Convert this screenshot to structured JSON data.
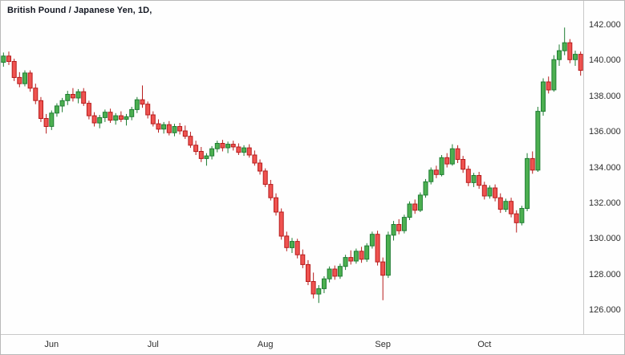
{
  "window": {
    "title": "British Pound / Japanese Yen, 1D,"
  },
  "colors": {
    "up": "#4caf50",
    "up_border": "#1e7d32",
    "down": "#ef5350",
    "down_border": "#b71c1c",
    "background": "#fefefe",
    "axis_line": "#c9c9c9",
    "text": "#2e2e2e"
  },
  "chart_data": {
    "type": "candlestick",
    "title": "British Pound / Japanese Yen, 1D,",
    "symbol": "British Pound / Japanese Yen",
    "interval": "1D",
    "legend_position": "top-left",
    "grid": false,
    "ylim": [
      124.65,
      143.35
    ],
    "y_ticks": [
      {
        "value": 142,
        "label": "142.000"
      },
      {
        "value": 140,
        "label": "140.000"
      },
      {
        "value": 138,
        "label": "138.000"
      },
      {
        "value": 136,
        "label": "136.000"
      },
      {
        "value": 134,
        "label": "134.000"
      },
      {
        "value": 132,
        "label": "132.000"
      },
      {
        "value": 130,
        "label": "130.000"
      },
      {
        "value": 128,
        "label": "128.000"
      },
      {
        "value": 126,
        "label": "126.000"
      }
    ],
    "x_ticks": [
      {
        "index": 9,
        "label": "Jun"
      },
      {
        "index": 28,
        "label": "Jul"
      },
      {
        "index": 49,
        "label": "Aug"
      },
      {
        "index": 71,
        "label": "Sep"
      },
      {
        "index": 90,
        "label": "Oct"
      }
    ],
    "candles": [
      [
        139.9,
        140.45,
        139.65,
        140.25
      ],
      [
        140.25,
        140.5,
        139.75,
        139.95
      ],
      [
        139.95,
        140.1,
        138.85,
        139.05
      ],
      [
        139.05,
        139.35,
        138.5,
        138.7
      ],
      [
        138.7,
        139.45,
        138.55,
        139.3
      ],
      [
        139.3,
        139.45,
        138.25,
        138.45
      ],
      [
        138.45,
        138.7,
        137.55,
        137.75
      ],
      [
        137.75,
        137.95,
        136.55,
        136.75
      ],
      [
        136.75,
        137.0,
        135.9,
        136.3
      ],
      [
        136.3,
        137.2,
        136.1,
        137.05
      ],
      [
        137.05,
        137.6,
        136.85,
        137.45
      ],
      [
        137.45,
        137.9,
        137.1,
        137.75
      ],
      [
        137.75,
        138.3,
        137.5,
        138.1
      ],
      [
        138.1,
        138.45,
        137.7,
        137.9
      ],
      [
        137.9,
        138.4,
        137.6,
        138.25
      ],
      [
        138.25,
        138.45,
        137.45,
        137.6
      ],
      [
        137.6,
        137.75,
        136.7,
        136.9
      ],
      [
        136.9,
        137.1,
        136.3,
        136.5
      ],
      [
        136.5,
        136.95,
        136.2,
        136.8
      ],
      [
        136.8,
        137.25,
        136.55,
        137.1
      ],
      [
        137.1,
        137.3,
        136.5,
        136.65
      ],
      [
        136.65,
        137.05,
        136.4,
        136.9
      ],
      [
        136.9,
        137.15,
        136.55,
        136.7
      ],
      [
        136.7,
        137.0,
        136.35,
        136.85
      ],
      [
        136.85,
        137.4,
        136.65,
        137.25
      ],
      [
        137.25,
        137.95,
        137.05,
        137.8
      ],
      [
        137.8,
        138.6,
        137.35,
        137.55
      ],
      [
        137.55,
        137.7,
        136.75,
        136.95
      ],
      [
        136.95,
        137.15,
        136.3,
        136.45
      ],
      [
        136.45,
        136.7,
        135.95,
        136.15
      ],
      [
        136.15,
        136.55,
        135.9,
        136.4
      ],
      [
        136.4,
        136.6,
        135.8,
        135.95
      ],
      [
        135.95,
        136.45,
        135.75,
        136.3
      ],
      [
        136.3,
        136.5,
        135.85,
        136.05
      ],
      [
        136.05,
        136.35,
        135.6,
        135.75
      ],
      [
        135.75,
        136.0,
        135.1,
        135.25
      ],
      [
        135.25,
        135.5,
        134.7,
        134.9
      ],
      [
        134.9,
        135.15,
        134.3,
        134.5
      ],
      [
        134.5,
        134.8,
        134.1,
        134.65
      ],
      [
        134.65,
        135.2,
        134.45,
        135.05
      ],
      [
        135.05,
        135.5,
        134.85,
        135.35
      ],
      [
        135.35,
        135.55,
        134.9,
        135.1
      ],
      [
        135.1,
        135.45,
        134.8,
        135.3
      ],
      [
        135.3,
        135.5,
        134.95,
        135.15
      ],
      [
        135.15,
        135.35,
        134.7,
        134.85
      ],
      [
        134.85,
        135.25,
        134.65,
        135.1
      ],
      [
        135.1,
        135.3,
        134.55,
        134.7
      ],
      [
        134.7,
        134.95,
        134.1,
        134.25
      ],
      [
        134.25,
        134.45,
        133.6,
        133.8
      ],
      [
        133.8,
        133.95,
        132.9,
        133.05
      ],
      [
        133.05,
        133.3,
        132.15,
        132.3
      ],
      [
        132.3,
        132.55,
        131.3,
        131.5
      ],
      [
        131.5,
        131.7,
        129.95,
        130.15
      ],
      [
        130.15,
        130.4,
        129.3,
        129.5
      ],
      [
        129.5,
        130.05,
        129.2,
        129.85
      ],
      [
        129.85,
        130.0,
        128.9,
        129.1
      ],
      [
        129.1,
        129.4,
        128.35,
        128.55
      ],
      [
        128.55,
        128.8,
        127.4,
        127.6
      ],
      [
        127.6,
        128.1,
        126.65,
        126.9
      ],
      [
        126.9,
        127.4,
        126.4,
        127.2
      ],
      [
        127.2,
        127.9,
        126.95,
        127.75
      ],
      [
        127.75,
        128.45,
        127.55,
        128.3
      ],
      [
        128.3,
        128.5,
        127.7,
        127.9
      ],
      [
        127.9,
        128.6,
        127.75,
        128.45
      ],
      [
        128.45,
        129.1,
        128.25,
        128.95
      ],
      [
        128.95,
        129.35,
        128.55,
        128.75
      ],
      [
        128.75,
        129.45,
        128.6,
        129.3
      ],
      [
        129.3,
        129.55,
        128.65,
        128.85
      ],
      [
        128.85,
        129.75,
        128.7,
        129.6
      ],
      [
        129.6,
        130.4,
        129.45,
        130.25
      ],
      [
        130.25,
        130.45,
        128.5,
        128.7
      ],
      [
        128.7,
        128.95,
        126.55,
        127.95
      ],
      [
        127.95,
        130.4,
        127.8,
        130.2
      ],
      [
        130.2,
        131.0,
        129.9,
        130.8
      ],
      [
        130.8,
        131.1,
        130.25,
        130.45
      ],
      [
        130.45,
        131.35,
        130.3,
        131.2
      ],
      [
        131.2,
        132.1,
        131.05,
        131.95
      ],
      [
        131.95,
        132.2,
        131.4,
        131.6
      ],
      [
        131.6,
        132.6,
        131.5,
        132.45
      ],
      [
        132.45,
        133.35,
        132.3,
        133.2
      ],
      [
        133.2,
        134.0,
        133.05,
        133.85
      ],
      [
        133.85,
        134.1,
        133.4,
        133.6
      ],
      [
        133.6,
        134.7,
        133.5,
        134.55
      ],
      [
        134.55,
        134.8,
        134.0,
        134.2
      ],
      [
        134.2,
        135.3,
        134.1,
        135.05
      ],
      [
        135.05,
        135.25,
        134.25,
        134.45
      ],
      [
        134.45,
        134.65,
        133.7,
        133.9
      ],
      [
        133.9,
        134.1,
        132.95,
        133.15
      ],
      [
        133.15,
        133.7,
        132.9,
        133.55
      ],
      [
        133.55,
        133.75,
        132.8,
        133.0
      ],
      [
        133.0,
        133.2,
        132.2,
        132.4
      ],
      [
        132.4,
        133.0,
        132.25,
        132.85
      ],
      [
        132.85,
        133.05,
        132.1,
        132.3
      ],
      [
        132.3,
        132.55,
        131.45,
        131.65
      ],
      [
        131.65,
        132.25,
        131.5,
        132.1
      ],
      [
        132.1,
        132.3,
        131.2,
        131.4
      ],
      [
        131.4,
        131.6,
        130.35,
        130.9
      ],
      [
        130.9,
        131.85,
        130.75,
        131.7
      ],
      [
        131.7,
        134.8,
        131.55,
        134.5
      ],
      [
        134.5,
        134.9,
        133.65,
        133.85
      ],
      [
        133.85,
        137.4,
        133.75,
        137.15
      ],
      [
        137.15,
        139.0,
        136.9,
        138.8
      ],
      [
        138.8,
        139.1,
        138.15,
        138.35
      ],
      [
        138.35,
        140.3,
        138.25,
        140.05
      ],
      [
        140.05,
        140.9,
        139.7,
        140.55
      ],
      [
        140.55,
        141.85,
        140.3,
        141.0
      ],
      [
        141.0,
        141.2,
        139.85,
        140.05
      ],
      [
        140.05,
        140.55,
        139.7,
        140.35
      ],
      [
        140.35,
        140.5,
        139.15,
        139.45
      ]
    ]
  }
}
